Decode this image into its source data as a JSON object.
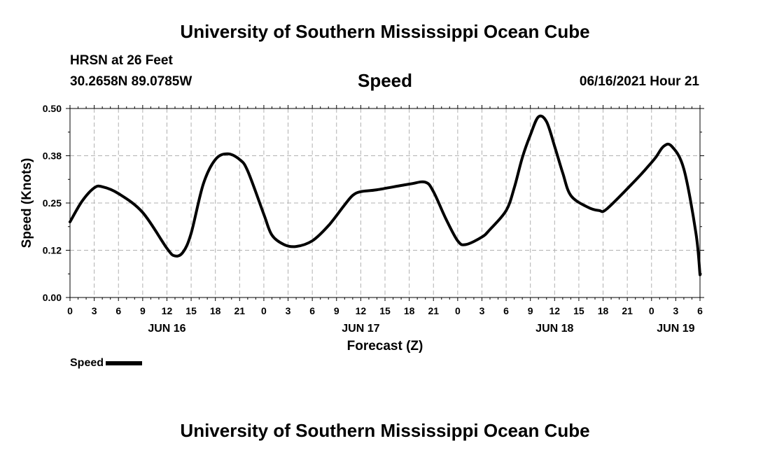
{
  "header": {
    "institution": "University of Southern Mississippi Ocean Cube",
    "station": "HRSN at 26 Feet",
    "coordinates": "30.2658N  89.0785W",
    "timestamp": "06/16/2021 Hour 21"
  },
  "footer": {
    "institution": "University of Southern Mississippi Ocean Cube"
  },
  "legend": {
    "label": "Speed"
  },
  "colors": {
    "line": "#000000",
    "grid": "#b0b0b0",
    "background": "#ffffff"
  },
  "chart_data": {
    "type": "line",
    "title": "Speed",
    "xlabel": "Forecast (Z)",
    "ylabel": "Speed (Knots)",
    "xlim": [
      0,
      78
    ],
    "ylim": [
      0,
      0.5
    ],
    "y_ticks": [
      0,
      0.125,
      0.25,
      0.375,
      0.5
    ],
    "y_tick_labels": [
      "0.00",
      "0.12",
      "0.25",
      "0.38",
      "0.50"
    ],
    "x_ticks": [
      0,
      3,
      6,
      9,
      12,
      15,
      18,
      21,
      24,
      27,
      30,
      33,
      36,
      39,
      42,
      45,
      48,
      51,
      54,
      57,
      60,
      63,
      66,
      69,
      72,
      75,
      78
    ],
    "x_tick_labels": [
      "0",
      "3",
      "6",
      "9",
      "12",
      "15",
      "18",
      "21",
      "0",
      "3",
      "6",
      "9",
      "12",
      "15",
      "18",
      "21",
      "0",
      "3",
      "6",
      "9",
      "12",
      "15",
      "18",
      "21",
      "0",
      "3",
      "6"
    ],
    "date_labels": [
      {
        "label": "JUN 16",
        "x": 12
      },
      {
        "label": "JUN 17",
        "x": 36
      },
      {
        "label": "JUN 18",
        "x": 60
      },
      {
        "label": "JUN 19",
        "x": 75
      }
    ],
    "series": [
      {
        "name": "Speed",
        "x": [
          0,
          1.5,
          3,
          4,
          6,
          9,
          12,
          13,
          14,
          15,
          16.5,
          18,
          19.5,
          21,
          22,
          24,
          25,
          26.5,
          28,
          30,
          32,
          34,
          35,
          36,
          38,
          42,
          44,
          45,
          46.5,
          48,
          49,
          51,
          52,
          54,
          55,
          56,
          57,
          58,
          59,
          60,
          61,
          62,
          64,
          65.5,
          66.5,
          70,
          71.5,
          72.5,
          73.5,
          74.5,
          76,
          77.5,
          78
        ],
        "y": [
          0.2,
          0.255,
          0.29,
          0.293,
          0.275,
          0.225,
          0.13,
          0.11,
          0.12,
          0.17,
          0.3,
          0.365,
          0.38,
          0.365,
          0.335,
          0.22,
          0.165,
          0.14,
          0.135,
          0.15,
          0.19,
          0.245,
          0.27,
          0.28,
          0.285,
          0.3,
          0.305,
          0.28,
          0.21,
          0.15,
          0.14,
          0.16,
          0.18,
          0.23,
          0.29,
          0.37,
          0.43,
          0.478,
          0.465,
          0.4,
          0.33,
          0.27,
          0.24,
          0.23,
          0.235,
          0.31,
          0.345,
          0.37,
          0.4,
          0.4,
          0.34,
          0.17,
          0.06
        ]
      }
    ]
  }
}
